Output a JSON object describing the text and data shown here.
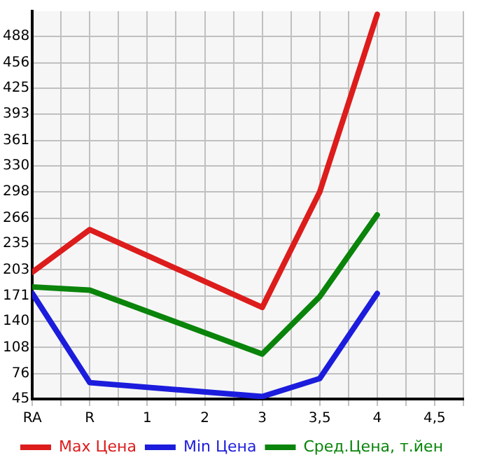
{
  "chart_data": {
    "type": "line",
    "categories": [
      "RA",
      "R",
      "1",
      "2",
      "3",
      "3,5",
      "4",
      "4,5"
    ],
    "series": [
      {
        "name": "Max Цена",
        "color": "#dd1c1c",
        "values": [
          200,
          252,
          null,
          null,
          157,
          298,
          515,
          null
        ]
      },
      {
        "name": "Min Цена",
        "color": "#1c1cdd",
        "values": [
          174,
          65,
          null,
          null,
          48,
          70,
          174,
          null
        ]
      },
      {
        "name": "Сред.Цена, т.йен",
        "color": "#0a840a",
        "values": [
          182,
          178,
          null,
          null,
          100,
          170,
          270,
          null
        ]
      }
    ],
    "ylim": [
      45,
      519
    ],
    "yticks": [
      45,
      76,
      108,
      140,
      171,
      203,
      235,
      266,
      298,
      330,
      361,
      393,
      425,
      456,
      488
    ],
    "grid": true,
    "legend": "bottom",
    "marker": "none",
    "line_style": "solid"
  }
}
